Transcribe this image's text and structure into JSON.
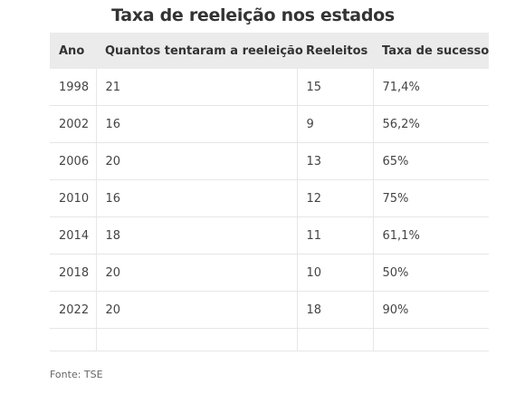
{
  "title": "Taxa de reeleição nos estados",
  "table": {
    "header": [
      "Ano",
      "Quantos tentaram a reeleição",
      "Reeleitos",
      "Taxa de sucesso"
    ],
    "rows": [
      [
        "1998",
        "21",
        "15",
        "71,4%"
      ],
      [
        "2002",
        "16",
        "9",
        "56,2%"
      ],
      [
        "2006",
        "20",
        "13",
        "65%"
      ],
      [
        "2010",
        "16",
        "12",
        "75%"
      ],
      [
        "2014",
        "18",
        "11",
        "61,1%"
      ],
      [
        "2018",
        "20",
        "10",
        "50%"
      ],
      [
        "2022",
        "20",
        "18",
        "90%"
      ]
    ]
  },
  "source": "Fonte: TSE"
}
